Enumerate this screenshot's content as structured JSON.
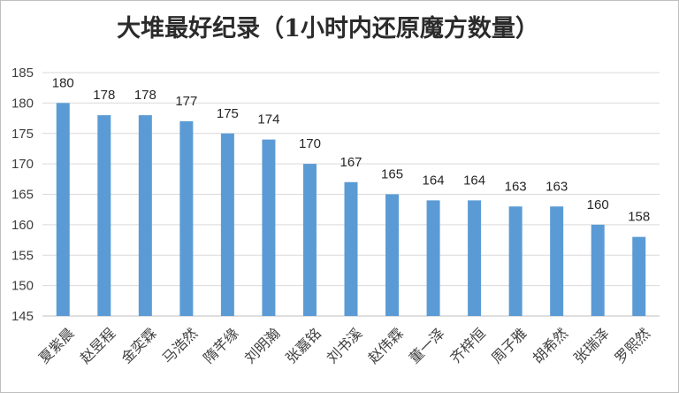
{
  "chart_data": {
    "type": "bar",
    "title": "大堆最好纪录（1小时内还原魔方数量）",
    "xlabel": "",
    "ylabel": "",
    "categories": [
      "夏紫晨",
      "赵昱程",
      "金奕霖",
      "马浩然",
      "隋芊缘",
      "刘明瀚",
      "张嘉铭",
      "刘书溪",
      "赵伟霖",
      "董一泽",
      "齐梓恒",
      "周子雅",
      "胡希然",
      "张瑞泽",
      "罗熙然"
    ],
    "values": [
      180,
      178,
      178,
      177,
      175,
      174,
      170,
      167,
      165,
      164,
      164,
      163,
      163,
      160,
      158
    ],
    "ylim": [
      145,
      185
    ],
    "yticks": [
      145,
      150,
      155,
      160,
      165,
      170,
      175,
      180,
      185
    ],
    "grid": true,
    "legend": "none",
    "bar_color": "#5b9bd5"
  }
}
